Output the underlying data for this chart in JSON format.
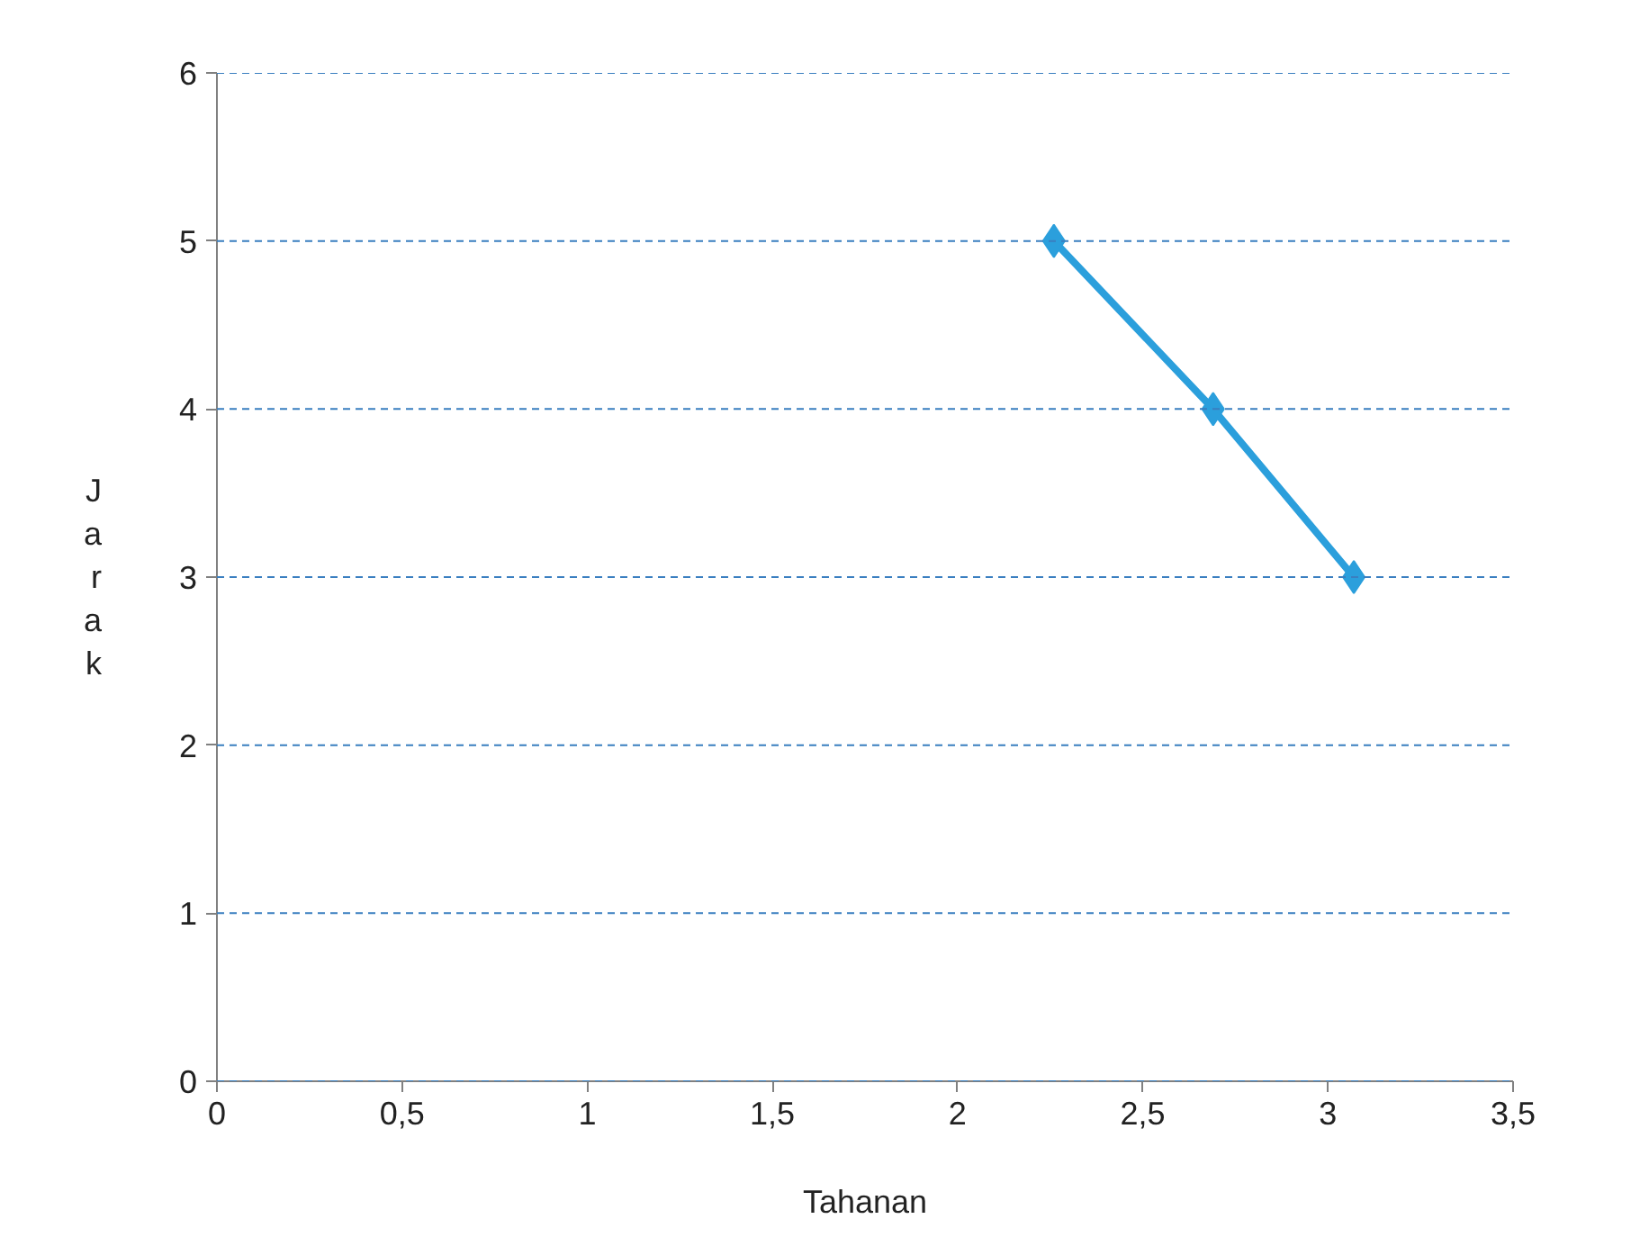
{
  "chart_data": {
    "type": "line",
    "xlabel": "Tahanan",
    "ylabel": "Jarak",
    "x": [
      2.26,
      2.69,
      3.07
    ],
    "series": [
      {
        "color": "#2b9fdc",
        "values": [
          5,
          4,
          3
        ]
      }
    ],
    "xlim": [
      0,
      3.5
    ],
    "ylim": [
      0,
      6
    ],
    "xticks": [
      0,
      {
        "value": 0.5,
        "label": "0,5"
      },
      1,
      {
        "value": 1.5,
        "label": "1,5"
      },
      2,
      {
        "value": 2.5,
        "label": "2,5"
      },
      3,
      {
        "value": 3.5,
        "label": "3,5"
      }
    ],
    "yticks": [
      0,
      1,
      2,
      3,
      4,
      5,
      6
    ],
    "grid": "y",
    "marker": "diamond",
    "line_style": "solid"
  }
}
